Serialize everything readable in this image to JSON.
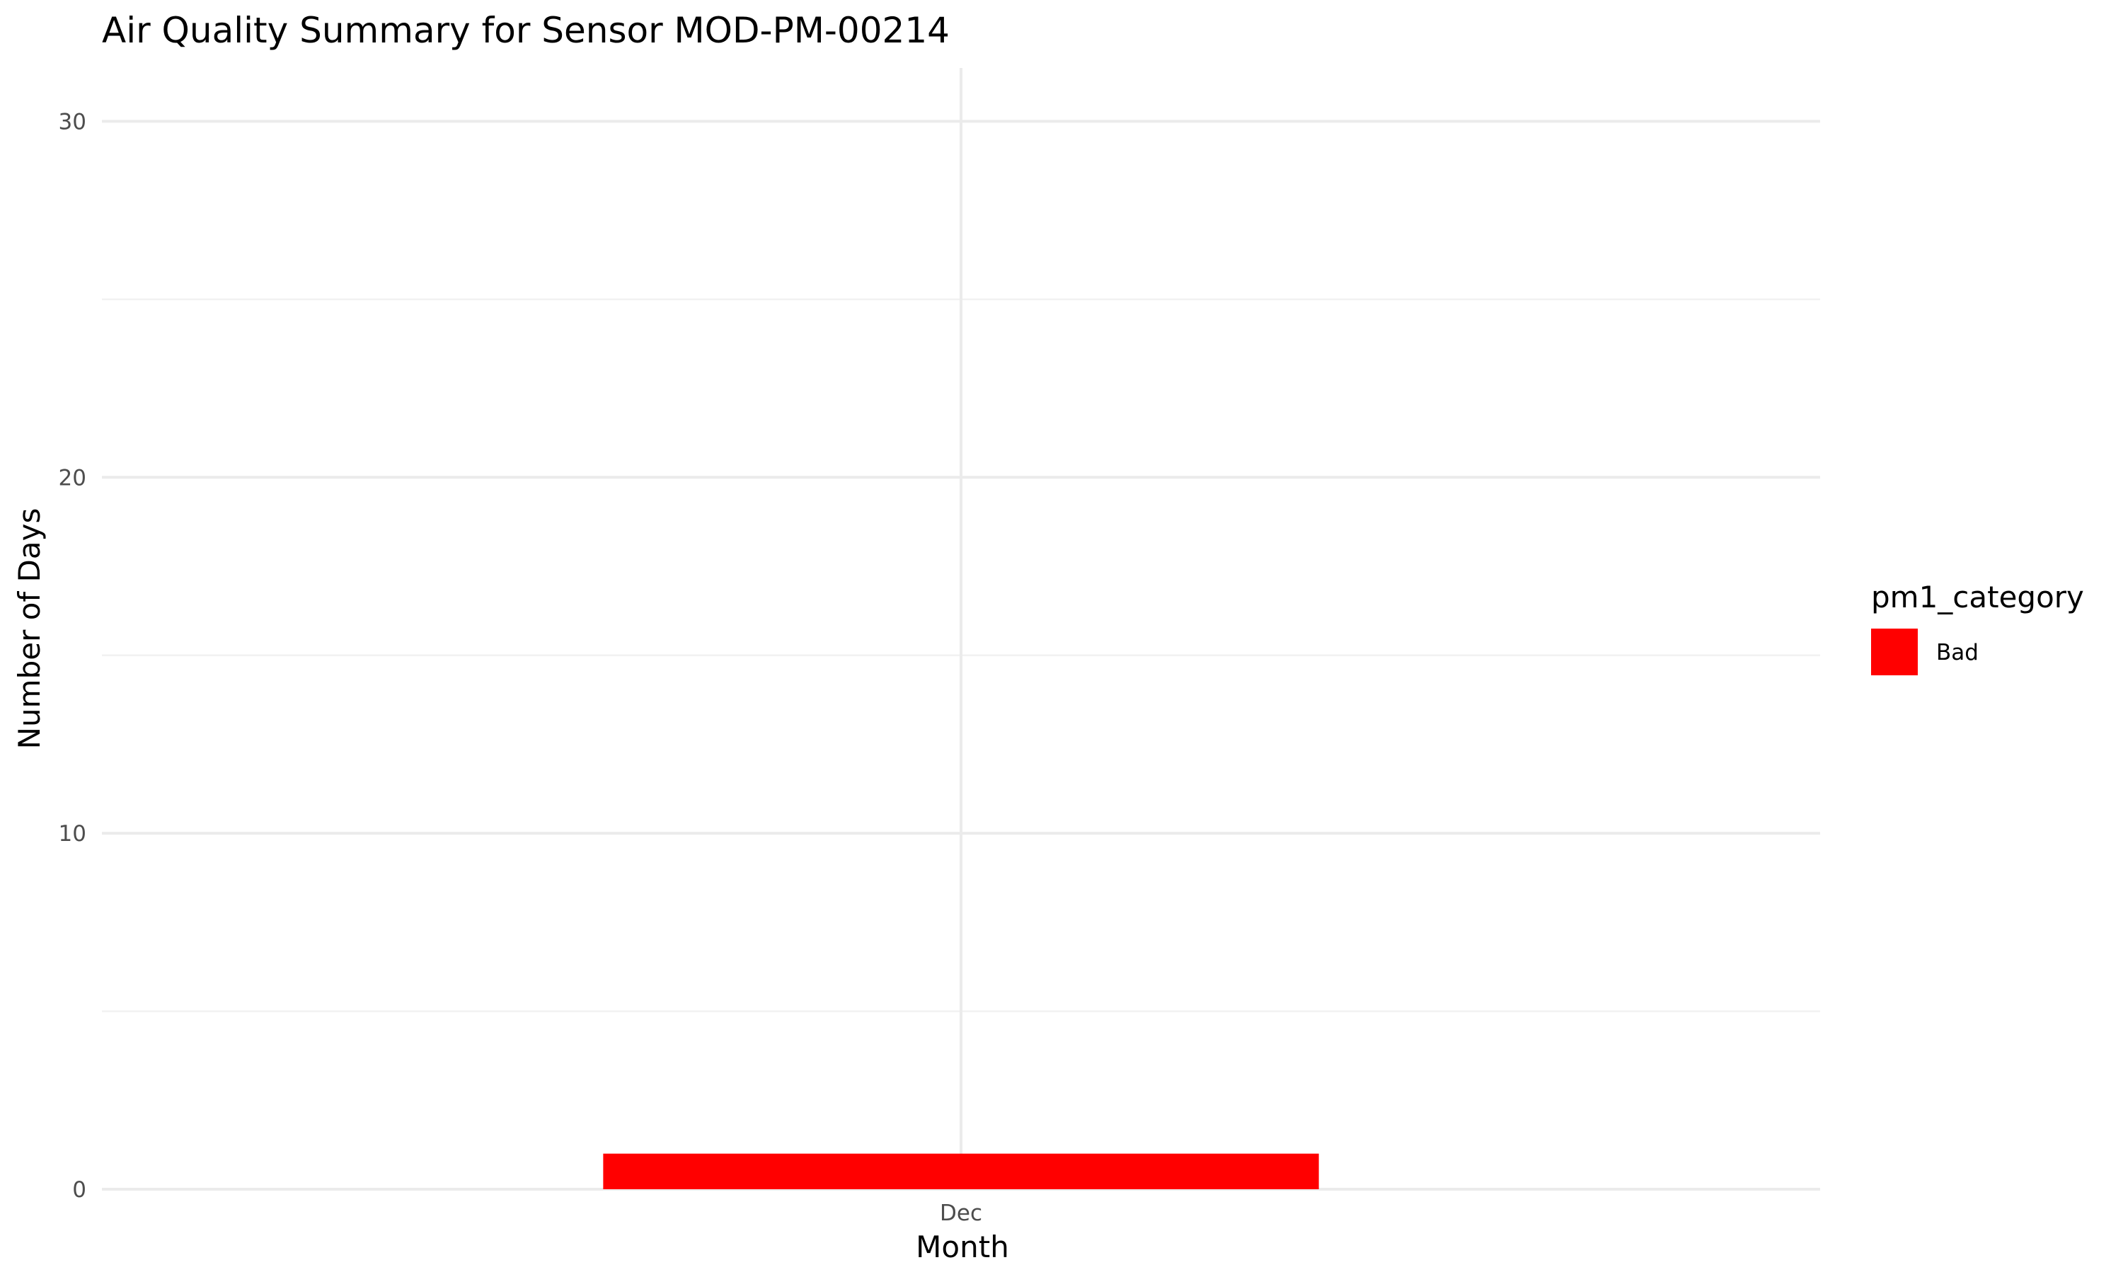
{
  "chart_data": {
    "type": "bar",
    "title": "Air Quality Summary for Sensor MOD-PM-00214",
    "xlabel": "Month",
    "ylabel": "Number of Days",
    "categories": [
      "Dec"
    ],
    "series": [
      {
        "name": "Bad",
        "values": [
          1
        ],
        "color": "#ff0000"
      }
    ],
    "ylim": [
      0,
      31.5
    ],
    "y_ticks": [
      0,
      10,
      20,
      30
    ],
    "y_tick_labels": [
      "0",
      "10",
      "20",
      "30"
    ],
    "y_minor_ticks": [
      5,
      15,
      25
    ],
    "grid": true,
    "legend": {
      "title": "pm1_category",
      "position": "right",
      "entries": [
        {
          "label": "Bad",
          "color": "#ff0000"
        }
      ]
    }
  }
}
